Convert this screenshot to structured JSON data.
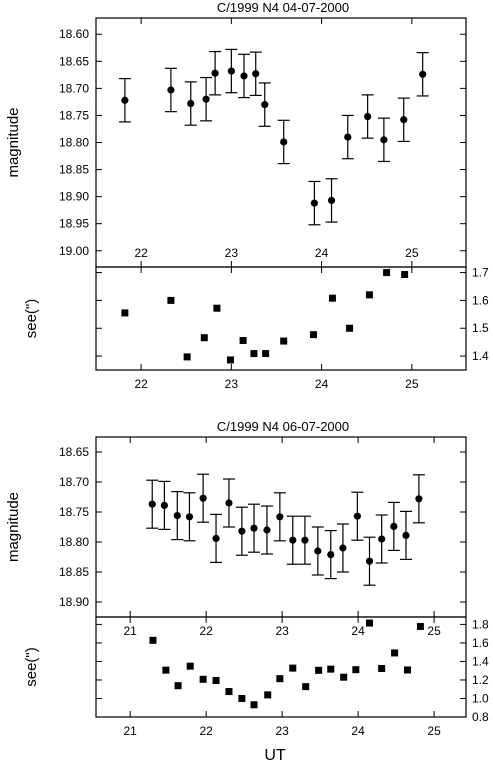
{
  "x_axis_label": "UT",
  "chart_data": [
    {
      "type": "scatter",
      "title": "C/1999 N4  04-07-2000",
      "xlim": [
        21.5,
        25.6
      ],
      "x_ticks": [
        "22",
        "23",
        "24",
        "25"
      ],
      "upper": {
        "ylabel": "magnitude",
        "ylim": [
          19.03,
          18.57
        ],
        "y_ticks": [
          "18.60",
          "18.65",
          "18.70",
          "18.75",
          "18.80",
          "18.85",
          "18.90",
          "18.95",
          "19.00"
        ],
        "marker": "circle",
        "points": [
          {
            "x": 21.82,
            "y": 18.722,
            "err": 0.04
          },
          {
            "x": 22.33,
            "y": 18.703,
            "err": 0.04
          },
          {
            "x": 22.55,
            "y": 18.728,
            "err": 0.04
          },
          {
            "x": 22.72,
            "y": 18.72,
            "err": 0.04
          },
          {
            "x": 22.82,
            "y": 18.672,
            "err": 0.04
          },
          {
            "x": 23.0,
            "y": 18.668,
            "err": 0.04
          },
          {
            "x": 23.14,
            "y": 18.677,
            "err": 0.04
          },
          {
            "x": 23.27,
            "y": 18.673,
            "err": 0.04
          },
          {
            "x": 23.37,
            "y": 18.73,
            "err": 0.04
          },
          {
            "x": 23.58,
            "y": 18.799,
            "err": 0.04
          },
          {
            "x": 23.92,
            "y": 18.912,
            "err": 0.04
          },
          {
            "x": 24.11,
            "y": 18.907,
            "err": 0.04
          },
          {
            "x": 24.29,
            "y": 18.79,
            "err": 0.04
          },
          {
            "x": 24.51,
            "y": 18.752,
            "err": 0.04
          },
          {
            "x": 24.69,
            "y": 18.795,
            "err": 0.04
          },
          {
            "x": 24.91,
            "y": 18.758,
            "err": 0.04
          },
          {
            "x": 25.12,
            "y": 18.674,
            "err": 0.04
          }
        ]
      },
      "lower": {
        "ylabel": "see(\")",
        "ylim": [
          1.35,
          1.72
        ],
        "y_ticks": [
          "1.4",
          "1.5",
          "1.6",
          "1.7"
        ],
        "marker": "square",
        "points": [
          {
            "x": 21.82,
            "y": 1.555
          },
          {
            "x": 22.33,
            "y": 1.6
          },
          {
            "x": 22.51,
            "y": 1.397
          },
          {
            "x": 22.7,
            "y": 1.466
          },
          {
            "x": 22.84,
            "y": 1.572
          },
          {
            "x": 22.99,
            "y": 1.386
          },
          {
            "x": 23.13,
            "y": 1.456
          },
          {
            "x": 23.25,
            "y": 1.409
          },
          {
            "x": 23.38,
            "y": 1.409
          },
          {
            "x": 23.58,
            "y": 1.454
          },
          {
            "x": 23.91,
            "y": 1.477
          },
          {
            "x": 24.12,
            "y": 1.608
          },
          {
            "x": 24.31,
            "y": 1.5
          },
          {
            "x": 24.53,
            "y": 1.62
          },
          {
            "x": 24.72,
            "y": 1.7
          },
          {
            "x": 24.92,
            "y": 1.693
          }
        ]
      }
    },
    {
      "type": "scatter",
      "title": "C/1999 N4  06-07-2000",
      "xlim": [
        20.55,
        25.42
      ],
      "x_ticks": [
        "21",
        "22",
        "23",
        "24",
        "25"
      ],
      "upper": {
        "ylabel": "magnitude",
        "ylim": [
          18.925,
          18.625
        ],
        "y_ticks": [
          "18.65",
          "18.70",
          "18.75",
          "18.80",
          "18.85",
          "18.90"
        ],
        "marker": "circle",
        "points": [
          {
            "x": 21.29,
            "y": 18.737,
            "err": 0.04
          },
          {
            "x": 21.45,
            "y": 18.739,
            "err": 0.04
          },
          {
            "x": 21.62,
            "y": 18.756,
            "err": 0.04
          },
          {
            "x": 21.78,
            "y": 18.758,
            "err": 0.04
          },
          {
            "x": 21.96,
            "y": 18.727,
            "err": 0.04
          },
          {
            "x": 22.13,
            "y": 18.794,
            "err": 0.04
          },
          {
            "x": 22.3,
            "y": 18.735,
            "err": 0.04
          },
          {
            "x": 22.47,
            "y": 18.782,
            "err": 0.04
          },
          {
            "x": 22.63,
            "y": 18.777,
            "err": 0.04
          },
          {
            "x": 22.8,
            "y": 18.78,
            "err": 0.04
          },
          {
            "x": 22.97,
            "y": 18.758,
            "err": 0.04
          },
          {
            "x": 23.14,
            "y": 18.797,
            "err": 0.04
          },
          {
            "x": 23.3,
            "y": 18.797,
            "err": 0.04
          },
          {
            "x": 23.47,
            "y": 18.815,
            "err": 0.04
          },
          {
            "x": 23.64,
            "y": 18.821,
            "err": 0.04
          },
          {
            "x": 23.8,
            "y": 18.81,
            "err": 0.04
          },
          {
            "x": 23.99,
            "y": 18.757,
            "err": 0.04
          },
          {
            "x": 24.15,
            "y": 18.832,
            "err": 0.04
          },
          {
            "x": 24.31,
            "y": 18.795,
            "err": 0.04
          },
          {
            "x": 24.47,
            "y": 18.774,
            "err": 0.04
          },
          {
            "x": 24.63,
            "y": 18.789,
            "err": 0.04
          },
          {
            "x": 24.8,
            "y": 18.728,
            "err": 0.04
          }
        ]
      },
      "lower": {
        "ylabel": "see(\")",
        "ylim": [
          0.8,
          1.88
        ],
        "y_ticks": [
          "0.8",
          "1.0",
          "1.2",
          "1.4",
          "1.6",
          "1.8"
        ],
        "marker": "square",
        "points": [
          {
            "x": 21.3,
            "y": 1.628
          },
          {
            "x": 21.47,
            "y": 1.306
          },
          {
            "x": 21.63,
            "y": 1.138
          },
          {
            "x": 21.79,
            "y": 1.349
          },
          {
            "x": 21.96,
            "y": 1.207
          },
          {
            "x": 22.13,
            "y": 1.194
          },
          {
            "x": 22.3,
            "y": 1.075
          },
          {
            "x": 22.47,
            "y": 1.0
          },
          {
            "x": 22.63,
            "y": 0.932
          },
          {
            "x": 22.81,
            "y": 1.039
          },
          {
            "x": 22.97,
            "y": 1.214
          },
          {
            "x": 23.14,
            "y": 1.328
          },
          {
            "x": 23.31,
            "y": 1.128
          },
          {
            "x": 23.48,
            "y": 1.304
          },
          {
            "x": 23.64,
            "y": 1.317
          },
          {
            "x": 23.81,
            "y": 1.23
          },
          {
            "x": 23.97,
            "y": 1.311
          },
          {
            "x": 24.15,
            "y": 1.815
          },
          {
            "x": 24.31,
            "y": 1.324
          },
          {
            "x": 24.48,
            "y": 1.492
          },
          {
            "x": 24.65,
            "y": 1.308
          },
          {
            "x": 24.82,
            "y": 1.778
          }
        ]
      }
    }
  ]
}
